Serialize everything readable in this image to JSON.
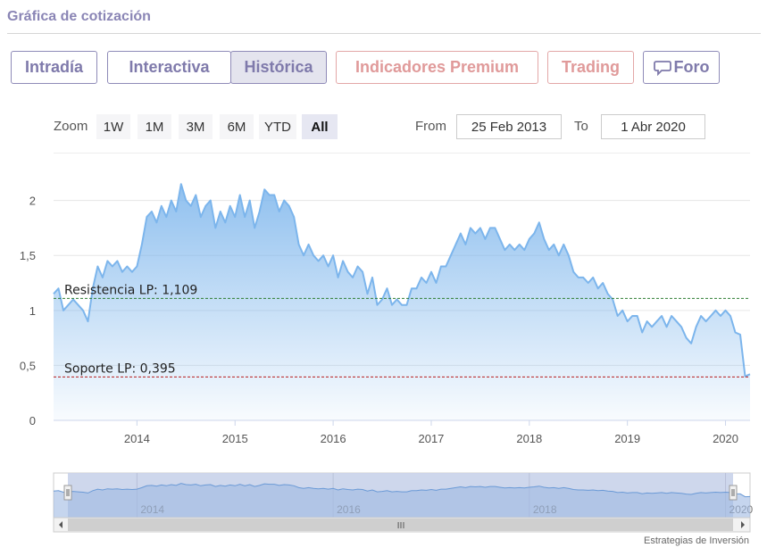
{
  "header": {
    "title": "Gráfica de cotización"
  },
  "tabs": [
    {
      "label": "Intradía",
      "kind": "normal"
    },
    {
      "label": "Interactiva",
      "kind": "normal"
    },
    {
      "label": "Histórica",
      "kind": "active"
    },
    {
      "label": "Indicadores Premium",
      "kind": "premium"
    },
    {
      "label": "Trading",
      "kind": "premium"
    },
    {
      "label": "Foro",
      "kind": "normal",
      "icon": "chat-bubble-icon"
    }
  ],
  "range_selector": {
    "zoom_label": "Zoom",
    "buttons": [
      "1W",
      "1M",
      "3M",
      "6M",
      "YTD",
      "All"
    ],
    "selected": "All",
    "from_label": "From",
    "from_value": "25 Feb 2013",
    "to_label": "To",
    "to_value": "1 Abr 2020"
  },
  "colors": {
    "series_line": "#7cb5ec",
    "resistance_line": "#2e7d32",
    "support_line": "#b71c1c",
    "navigator_fill": "#c9d3ea"
  },
  "chart_data": {
    "type": "area",
    "y_ticks": [
      "0",
      "0,5",
      "1",
      "1,5",
      "2"
    ],
    "ylim": [
      0,
      2.2
    ],
    "x_ticks": [
      "2014",
      "2015",
      "2016",
      "2017",
      "2018",
      "2019",
      "2020"
    ],
    "xlim": [
      2013.15,
      2020.25
    ],
    "grid": true,
    "series": [
      {
        "x": [
          2013.15,
          2013.2,
          2013.25,
          2013.3,
          2013.35,
          2013.4,
          2013.45,
          2013.5,
          2013.55,
          2013.6,
          2013.65,
          2013.7,
          2013.75,
          2013.8,
          2013.85,
          2013.9,
          2013.95,
          2014.0,
          2014.05,
          2014.1,
          2014.15,
          2014.2,
          2014.25,
          2014.3,
          2014.35,
          2014.4,
          2014.45,
          2014.5,
          2014.55,
          2014.6,
          2014.65,
          2014.7,
          2014.75,
          2014.8,
          2014.85,
          2014.9,
          2014.95,
          2015.0,
          2015.05,
          2015.1,
          2015.15,
          2015.2,
          2015.25,
          2015.3,
          2015.35,
          2015.4,
          2015.45,
          2015.5,
          2015.55,
          2015.6,
          2015.65,
          2015.7,
          2015.75,
          2015.8,
          2015.85,
          2015.9,
          2015.95,
          2016.0,
          2016.05,
          2016.1,
          2016.15,
          2016.2,
          2016.25,
          2016.3,
          2016.35,
          2016.4,
          2016.45,
          2016.5,
          2016.55,
          2016.6,
          2016.65,
          2016.7,
          2016.75,
          2016.8,
          2016.85,
          2016.9,
          2016.95,
          2017.0,
          2017.05,
          2017.1,
          2017.15,
          2017.2,
          2017.25,
          2017.3,
          2017.35,
          2017.4,
          2017.45,
          2017.5,
          2017.55,
          2017.6,
          2017.65,
          2017.7,
          2017.75,
          2017.8,
          2017.85,
          2017.9,
          2017.95,
          2018.0,
          2018.05,
          2018.1,
          2018.15,
          2018.2,
          2018.25,
          2018.3,
          2018.35,
          2018.4,
          2018.45,
          2018.5,
          2018.55,
          2018.6,
          2018.65,
          2018.7,
          2018.75,
          2018.8,
          2018.85,
          2018.9,
          2018.95,
          2019.0,
          2019.05,
          2019.1,
          2019.15,
          2019.2,
          2019.25,
          2019.3,
          2019.35,
          2019.4,
          2019.45,
          2019.5,
          2019.55,
          2019.6,
          2019.65,
          2019.7,
          2019.75,
          2019.8,
          2019.85,
          2019.9,
          2019.95,
          2020.0,
          2020.05,
          2020.1,
          2020.15,
          2020.2,
          2020.25
        ],
        "y": [
          1.15,
          1.2,
          1.0,
          1.05,
          1.1,
          1.05,
          1.0,
          0.9,
          1.2,
          1.4,
          1.3,
          1.45,
          1.4,
          1.45,
          1.35,
          1.4,
          1.35,
          1.4,
          1.6,
          1.85,
          1.9,
          1.8,
          1.95,
          1.85,
          2.0,
          1.9,
          2.15,
          2.0,
          1.95,
          2.05,
          1.85,
          1.95,
          2.0,
          1.75,
          1.9,
          1.8,
          1.95,
          1.85,
          2.05,
          1.85,
          2.0,
          1.75,
          1.9,
          2.1,
          2.05,
          2.05,
          1.9,
          2.0,
          1.95,
          1.85,
          1.6,
          1.5,
          1.6,
          1.5,
          1.45,
          1.5,
          1.4,
          1.5,
          1.3,
          1.45,
          1.35,
          1.3,
          1.4,
          1.35,
          1.15,
          1.3,
          1.05,
          1.1,
          1.2,
          1.05,
          1.1,
          1.05,
          1.05,
          1.2,
          1.2,
          1.3,
          1.25,
          1.35,
          1.25,
          1.4,
          1.4,
          1.5,
          1.6,
          1.7,
          1.6,
          1.75,
          1.7,
          1.75,
          1.65,
          1.75,
          1.75,
          1.65,
          1.55,
          1.6,
          1.55,
          1.6,
          1.55,
          1.65,
          1.7,
          1.8,
          1.65,
          1.55,
          1.6,
          1.5,
          1.6,
          1.5,
          1.35,
          1.3,
          1.3,
          1.25,
          1.3,
          1.2,
          1.25,
          1.15,
          1.1,
          0.95,
          1.0,
          0.9,
          0.95,
          0.95,
          0.8,
          0.9,
          0.85,
          0.9,
          0.95,
          0.85,
          0.95,
          0.9,
          0.85,
          0.75,
          0.7,
          0.85,
          0.95,
          0.9,
          0.95,
          1.0,
          0.95,
          1.0,
          0.95,
          0.8,
          0.78,
          0.4,
          0.42
        ]
      }
    ],
    "annotations": [
      {
        "label": "Resistencia LP: 1,109",
        "y": 1.109,
        "kind": "resistance"
      },
      {
        "label": "Soporte LP: 0,395",
        "y": 0.395,
        "kind": "support"
      }
    ],
    "navigator": {
      "x_ticks": [
        "2014",
        "2016",
        "2018",
        "2020"
      ],
      "scroll_grip": "III"
    }
  },
  "footer": {
    "credit": "Estrategias de Inversión"
  }
}
